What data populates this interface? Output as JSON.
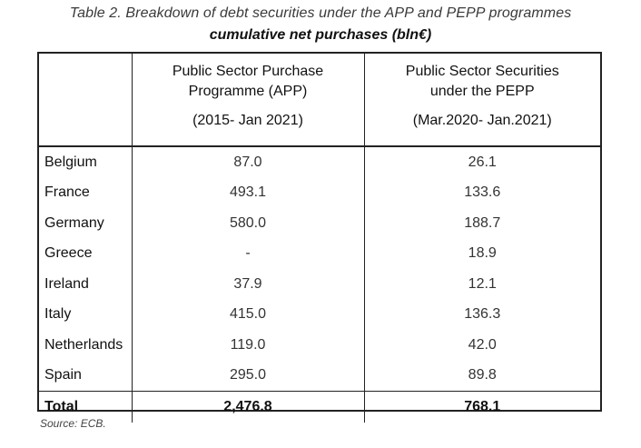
{
  "caption": "Table 2. Breakdown of debt securities under the APP and PEPP programmes",
  "subcaption": "cumulative net purchases (bln€)",
  "table": {
    "headers": [
      {
        "title_line1": "",
        "title_line2": "",
        "period": ""
      },
      {
        "title_line1": "Public Sector Purchase",
        "title_line2": "Programme (APP)",
        "period": "(2015- Jan 2021)"
      },
      {
        "title_line1": "Public Sector Securities",
        "title_line2": "under the PEPP",
        "period": "(Mar.2020- Jan.2021)"
      }
    ],
    "rows": [
      {
        "country": "Belgium",
        "app": "87.0",
        "pepp": "26.1"
      },
      {
        "country": "France",
        "app": "493.1",
        "pepp": "133.6"
      },
      {
        "country": "Germany",
        "app": "580.0",
        "pepp": "188.7"
      },
      {
        "country": "Greece",
        "app": "-",
        "pepp": "18.9"
      },
      {
        "country": "Ireland",
        "app": "37.9",
        "pepp": "12.1"
      },
      {
        "country": "Italy",
        "app": "415.0",
        "pepp": "136.3"
      },
      {
        "country": "Netherlands",
        "app": "119.0",
        "pepp": "42.0"
      },
      {
        "country": "Spain",
        "app": "295.0",
        "pepp": "89.8"
      }
    ],
    "total": {
      "country": "Total",
      "app": "2,476.8",
      "pepp": "768.1"
    }
  },
  "source": "Source: ECB."
}
